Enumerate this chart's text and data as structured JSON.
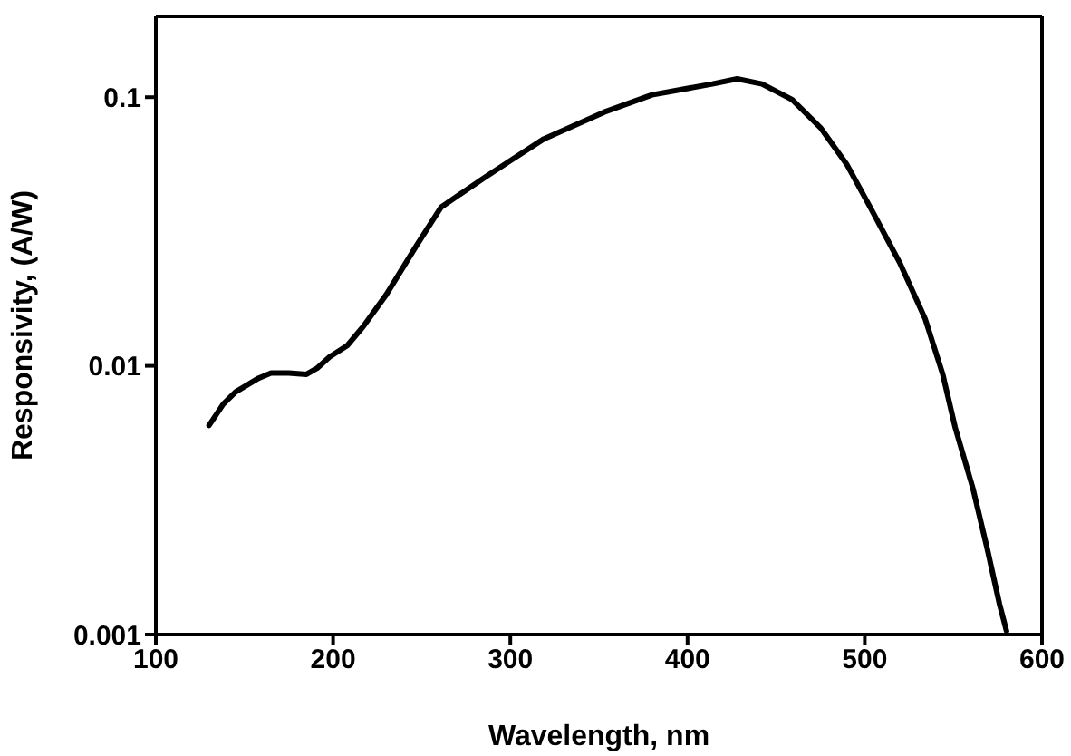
{
  "chart_data": {
    "type": "line",
    "xlabel": "Wavelength, nm",
    "ylabel": "Responsivity, (A/W)",
    "x": [
      130,
      138,
      145,
      158,
      165,
      175,
      185,
      191,
      198,
      208,
      217,
      230,
      247,
      261,
      285,
      300,
      319,
      353,
      380,
      414,
      428,
      442,
      459,
      475,
      490,
      503,
      520,
      534,
      544,
      551,
      561,
      569,
      576,
      580
    ],
    "series": [
      {
        "color": "#000000",
        "values": [
          0.006,
          0.0072,
          0.008,
          0.009,
          0.0094,
          0.0094,
          0.0093,
          0.0098,
          0.0108,
          0.0119,
          0.014,
          0.0184,
          0.028,
          0.039,
          0.05,
          0.058,
          0.07,
          0.088,
          0.102,
          0.112,
          0.117,
          0.112,
          0.098,
          0.077,
          0.056,
          0.039,
          0.024,
          0.015,
          0.0093,
          0.0059,
          0.0035,
          0.0021,
          0.0013,
          0.00103
        ]
      }
    ],
    "xlim": [
      100,
      600
    ],
    "xticks": [
      100,
      200,
      300,
      400,
      500,
      600
    ],
    "ylim": [
      0.001,
      0.2
    ],
    "yticks": [
      0.001,
      0.01,
      0.1
    ],
    "log": "y"
  }
}
